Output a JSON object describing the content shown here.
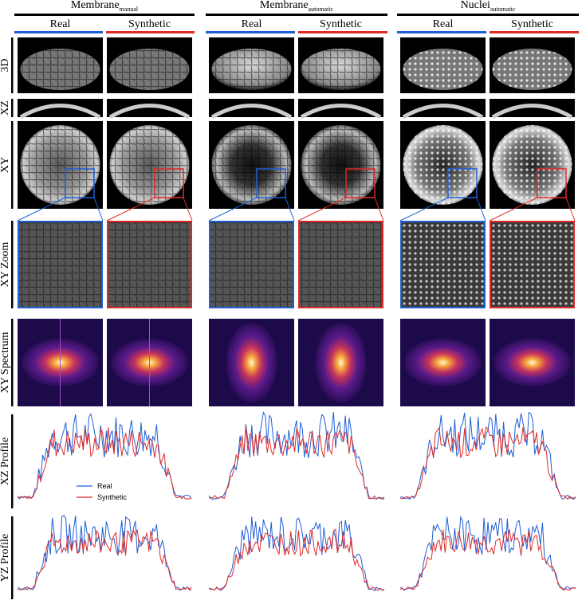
{
  "columns": [
    {
      "title": "Membrane",
      "subscript": "manual",
      "real": "Real",
      "synthetic": "Synthetic"
    },
    {
      "title": "Membrane",
      "subscript": "automatic",
      "real": "Real",
      "synthetic": "Synthetic"
    },
    {
      "title": "Nuclei",
      "subscript": "automatic",
      "real": "Real",
      "synthetic": "Synthetic"
    }
  ],
  "rows": [
    "3D",
    "XZ",
    "XY",
    "XY Zoom",
    "XY Spectrum",
    "XZ Profile",
    "YZ Profile"
  ],
  "legend": [
    "Real",
    "Synthetic"
  ]
}
